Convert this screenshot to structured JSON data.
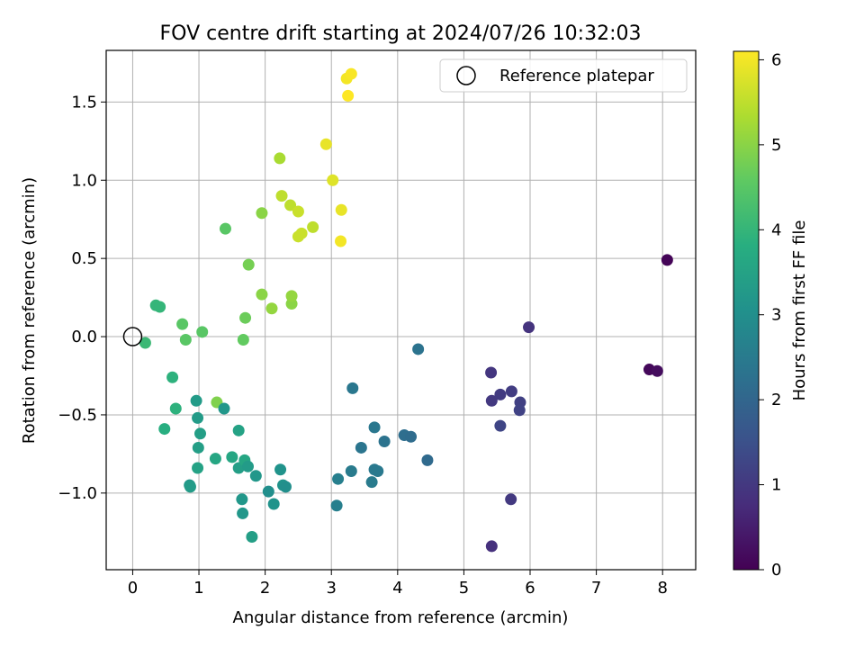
{
  "chart_data": {
    "type": "scatter",
    "title": "FOV centre drift starting at 2024/07/26 10:32:03",
    "xlabel": "Angular distance from reference (arcmin)",
    "ylabel": "Rotation from reference (arcmin)",
    "xlim": [
      -0.4,
      8.5
    ],
    "ylim": [
      -1.49,
      1.83
    ],
    "xticks": [
      0,
      1,
      2,
      3,
      4,
      5,
      6,
      7,
      8
    ],
    "xtick_labels": [
      "0",
      "1",
      "2",
      "3",
      "4",
      "5",
      "6",
      "7",
      "8"
    ],
    "yticks": [
      -1.0,
      -0.5,
      0.0,
      0.5,
      1.0,
      1.5
    ],
    "ytick_labels": [
      "−1.0",
      "−0.5",
      "0.0",
      "0.5",
      "1.0",
      "1.5"
    ],
    "grid": true,
    "legend": {
      "position": "top-right",
      "label": "Reference platepar"
    },
    "reference_point": {
      "x": 0.0,
      "y": 0.0
    },
    "colorbar": {
      "label": "Hours from first FF file",
      "colormap": "viridis",
      "range": [
        0,
        6.1
      ],
      "ticks": [
        0,
        1,
        2,
        3,
        4,
        5,
        6
      ],
      "tick_labels": [
        "0",
        "1",
        "2",
        "3",
        "4",
        "5",
        "6"
      ]
    },
    "points": [
      {
        "x": 8.07,
        "y": 0.49,
        "c": 0.05
      },
      {
        "x": 7.8,
        "y": -0.21,
        "c": 0.12
      },
      {
        "x": 7.92,
        "y": -0.22,
        "c": 0.2
      },
      {
        "x": 5.98,
        "y": 0.06,
        "c": 0.9
      },
      {
        "x": 5.41,
        "y": -0.23,
        "c": 0.95
      },
      {
        "x": 5.42,
        "y": -0.41,
        "c": 1.0
      },
      {
        "x": 5.55,
        "y": -0.37,
        "c": 1.05
      },
      {
        "x": 5.72,
        "y": -0.35,
        "c": 1.1
      },
      {
        "x": 5.85,
        "y": -0.42,
        "c": 1.15
      },
      {
        "x": 5.84,
        "y": -0.47,
        "c": 1.2
      },
      {
        "x": 5.55,
        "y": -0.57,
        "c": 1.25
      },
      {
        "x": 5.71,
        "y": -1.04,
        "c": 1.0
      },
      {
        "x": 5.42,
        "y": -1.34,
        "c": 0.85
      },
      {
        "x": 4.31,
        "y": -0.08,
        "c": 2.3
      },
      {
        "x": 3.32,
        "y": -0.33,
        "c": 2.4
      },
      {
        "x": 4.1,
        "y": -0.63,
        "c": 2.2
      },
      {
        "x": 4.2,
        "y": -0.64,
        "c": 2.15
      },
      {
        "x": 4.45,
        "y": -0.79,
        "c": 2.1
      },
      {
        "x": 3.65,
        "y": -0.58,
        "c": 2.4
      },
      {
        "x": 3.8,
        "y": -0.67,
        "c": 2.3
      },
      {
        "x": 3.45,
        "y": -0.71,
        "c": 2.35
      },
      {
        "x": 3.3,
        "y": -0.86,
        "c": 2.5
      },
      {
        "x": 3.65,
        "y": -0.85,
        "c": 2.45
      },
      {
        "x": 3.7,
        "y": -0.86,
        "c": 2.45
      },
      {
        "x": 3.1,
        "y": -0.91,
        "c": 2.6
      },
      {
        "x": 3.61,
        "y": -0.93,
        "c": 2.5
      },
      {
        "x": 3.08,
        "y": -1.08,
        "c": 2.6
      },
      {
        "x": 0.19,
        "y": -0.04,
        "c": 4.1
      },
      {
        "x": 0.35,
        "y": 0.2,
        "c": 4.0
      },
      {
        "x": 0.41,
        "y": 0.19,
        "c": 4.0
      },
      {
        "x": 0.6,
        "y": -0.26,
        "c": 3.9
      },
      {
        "x": 0.75,
        "y": 0.08,
        "c": 4.5
      },
      {
        "x": 0.8,
        "y": -0.02,
        "c": 4.5
      },
      {
        "x": 1.05,
        "y": 0.03,
        "c": 4.5
      },
      {
        "x": 0.65,
        "y": -0.46,
        "c": 3.9
      },
      {
        "x": 0.48,
        "y": -0.59,
        "c": 3.8
      },
      {
        "x": 0.96,
        "y": -0.41,
        "c": 3.3
      },
      {
        "x": 0.98,
        "y": -0.52,
        "c": 3.3
      },
      {
        "x": 1.02,
        "y": -0.62,
        "c": 3.4
      },
      {
        "x": 0.99,
        "y": -0.71,
        "c": 3.4
      },
      {
        "x": 0.98,
        "y": -0.84,
        "c": 3.5
      },
      {
        "x": 0.86,
        "y": -0.95,
        "c": 3.2
      },
      {
        "x": 0.87,
        "y": -0.96,
        "c": 3.3
      },
      {
        "x": 1.27,
        "y": -0.42,
        "c": 4.9
      },
      {
        "x": 1.38,
        "y": -0.46,
        "c": 3.2
      },
      {
        "x": 1.25,
        "y": -0.78,
        "c": 3.6
      },
      {
        "x": 1.5,
        "y": -0.77,
        "c": 3.6
      },
      {
        "x": 1.6,
        "y": -0.6,
        "c": 3.5
      },
      {
        "x": 1.6,
        "y": -0.84,
        "c": 3.4
      },
      {
        "x": 1.69,
        "y": -0.79,
        "c": 3.6
      },
      {
        "x": 1.74,
        "y": -0.83,
        "c": 3.3
      },
      {
        "x": 1.86,
        "y": -0.89,
        "c": 3.2
      },
      {
        "x": 1.65,
        "y": -1.04,
        "c": 3.2
      },
      {
        "x": 1.66,
        "y": -1.13,
        "c": 3.2
      },
      {
        "x": 1.8,
        "y": -1.28,
        "c": 3.4
      },
      {
        "x": 2.05,
        "y": -0.99,
        "c": 3.0
      },
      {
        "x": 2.13,
        "y": -1.07,
        "c": 3.1
      },
      {
        "x": 2.23,
        "y": -0.85,
        "c": 3.1
      },
      {
        "x": 2.27,
        "y": -0.95,
        "c": 3.1
      },
      {
        "x": 2.31,
        "y": -0.96,
        "c": 3.0
      },
      {
        "x": 1.4,
        "y": 0.69,
        "c": 4.5
      },
      {
        "x": 1.67,
        "y": -0.02,
        "c": 4.6
      },
      {
        "x": 1.7,
        "y": 0.12,
        "c": 4.7
      },
      {
        "x": 1.75,
        "y": 0.46,
        "c": 4.8
      },
      {
        "x": 1.95,
        "y": 0.27,
        "c": 5.0
      },
      {
        "x": 1.95,
        "y": 0.79,
        "c": 5.0
      },
      {
        "x": 2.1,
        "y": 0.18,
        "c": 5.1
      },
      {
        "x": 2.4,
        "y": 0.21,
        "c": 5.0
      },
      {
        "x": 2.4,
        "y": 0.26,
        "c": 5.1
      },
      {
        "x": 2.22,
        "y": 1.14,
        "c": 5.3
      },
      {
        "x": 2.25,
        "y": 0.9,
        "c": 5.5
      },
      {
        "x": 2.38,
        "y": 0.84,
        "c": 5.5
      },
      {
        "x": 2.5,
        "y": 0.8,
        "c": 5.6
      },
      {
        "x": 2.5,
        "y": 0.64,
        "c": 5.6
      },
      {
        "x": 2.55,
        "y": 0.66,
        "c": 5.6
      },
      {
        "x": 2.72,
        "y": 0.7,
        "c": 5.5
      },
      {
        "x": 2.92,
        "y": 1.23,
        "c": 5.9
      },
      {
        "x": 3.02,
        "y": 1.0,
        "c": 5.8
      },
      {
        "x": 3.15,
        "y": 0.81,
        "c": 5.9
      },
      {
        "x": 3.14,
        "y": 0.61,
        "c": 6.0
      },
      {
        "x": 3.23,
        "y": 1.65,
        "c": 6.0
      },
      {
        "x": 3.3,
        "y": 1.68,
        "c": 6.05
      },
      {
        "x": 3.25,
        "y": 1.54,
        "c": 6.1
      }
    ]
  }
}
